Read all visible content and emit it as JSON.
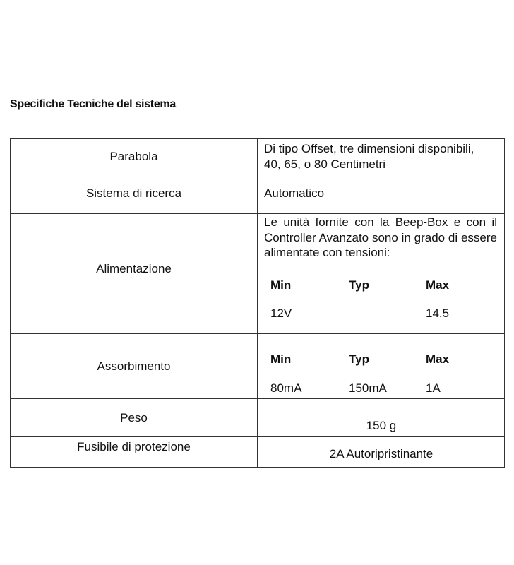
{
  "title": "Specifiche Tecniche del sistema",
  "rows": [
    {
      "label": "Parabola",
      "value_lines": [
        "Di tipo Offset, tre dimensioni disponibili,",
        "40, 65, o 80 Centimetri"
      ]
    },
    {
      "label": "Sistema di ricerca",
      "value": "Automatico"
    },
    {
      "label": "Alimentazione",
      "value": "Le unità fornite con la Beep-Box e con il Controller Avanzato sono in grado di essere alimentate con tensioni:",
      "headers": [
        "Min",
        "Typ",
        "Max"
      ],
      "values": [
        "12V",
        "",
        "14.5"
      ]
    },
    {
      "label": "Assorbimento",
      "headers": [
        "Min",
        "Typ",
        "Max"
      ],
      "values": [
        "80mA",
        "150mA",
        "1A"
      ]
    },
    {
      "label": "Peso",
      "value": "150 g"
    },
    {
      "label": "Fusibile di protezione",
      "value": "2A Autoripristinante"
    }
  ]
}
